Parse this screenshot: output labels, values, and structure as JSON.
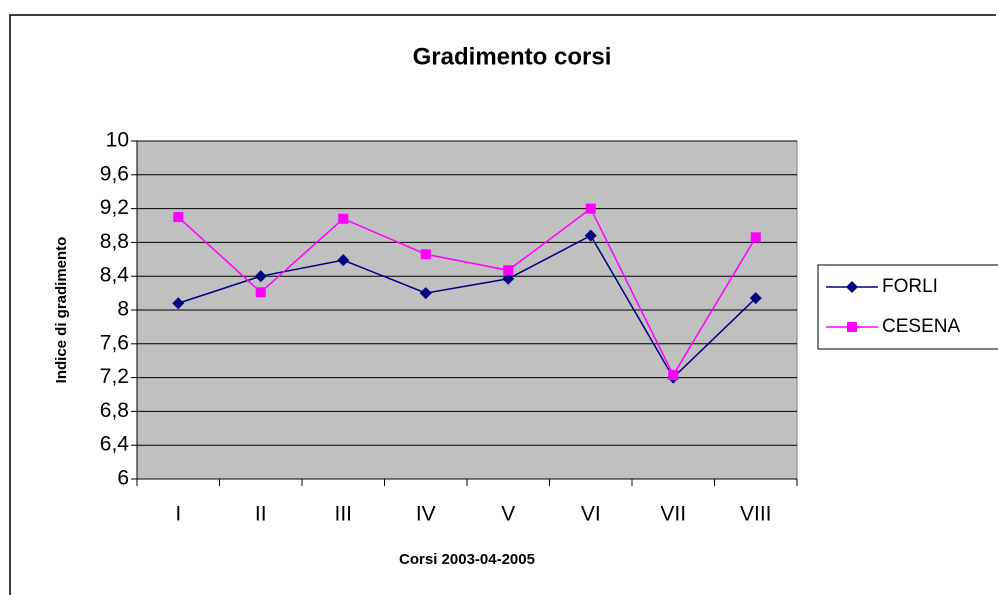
{
  "chart_data": {
    "type": "line",
    "title": "Gradimento corsi",
    "x_label": "Corsi 2003-04-2005",
    "y_label": "Indice di gradimento",
    "categories": [
      "I",
      "II",
      "III",
      "IV",
      "V",
      "VI",
      "VII",
      "VIII"
    ],
    "series": [
      {
        "name": "FORLI",
        "color": "#000080",
        "marker": "diamond",
        "values": [
          8.08,
          8.4,
          8.59,
          8.2,
          8.37,
          8.88,
          7.2,
          8.14
        ]
      },
      {
        "name": "CESENA",
        "color": "#ff00ff",
        "marker": "square",
        "values": [
          9.1,
          8.21,
          9.08,
          8.66,
          8.47,
          9.2,
          7.23,
          8.86
        ]
      }
    ],
    "ylim": [
      6,
      10
    ],
    "yticks": [
      6,
      {
        "value": 6.4,
        "label": "6,4"
      },
      {
        "value": 6.8,
        "label": "6,8"
      },
      {
        "value": 7.2,
        "label": "7,2"
      },
      {
        "value": 7.6,
        "label": "7,6"
      },
      8,
      {
        "value": 8.4,
        "label": "8,4"
      },
      {
        "value": 8.8,
        "label": "8,8"
      },
      {
        "value": 9.2,
        "label": "9,2"
      },
      {
        "value": 9.6,
        "label": "9,6"
      },
      10
    ],
    "grid": true,
    "legend": "right"
  }
}
